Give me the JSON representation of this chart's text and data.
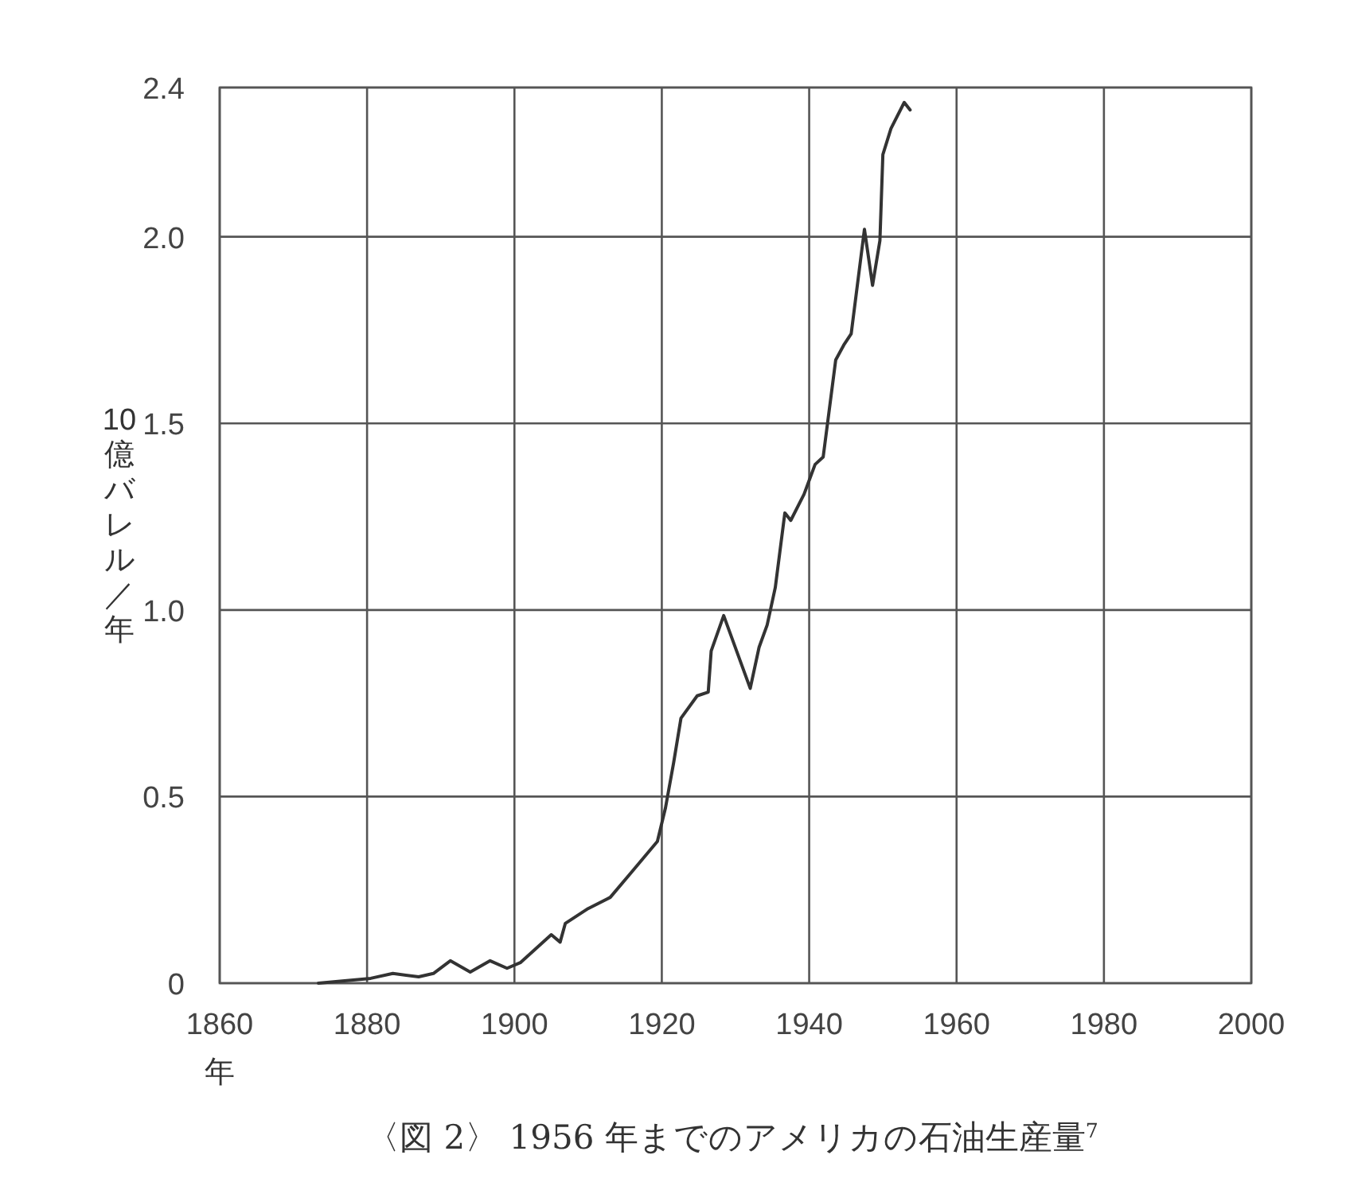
{
  "chart_data": {
    "type": "line",
    "title": "〈図 2〉 1956 年までのアメリカの石油生産量$^{7}$",
    "xlabel": "年",
    "ylabel": "10億バレル／年",
    "xlim": [
      1860,
      2000
    ],
    "ylim": [
      0,
      2.4
    ],
    "xticks": [
      1860,
      1880,
      1900,
      1920,
      1940,
      1960,
      1980,
      2000
    ],
    "yticks": [
      0,
      {
        "value": 0.5,
        "label": "0.5"
      },
      {
        "value": 1,
        "label": "1.0"
      },
      {
        "value": 1.5,
        "label": "1.5"
      },
      {
        "value": 2,
        "label": "2.0"
      },
      2.4
    ],
    "grid": true,
    "line_style": "solid",
    "series": [
      {
        "color": "#333333",
        "x": [
          1873.4,
          1880.5,
          1883.5,
          1887,
          1889,
          1891.3,
          1894,
          1896.7,
          1899,
          1900.8,
          1905,
          1906.2,
          1906.9,
          1910,
          1913,
          1916,
          1919.4,
          1920.5,
          1921.6,
          1922.6,
          1924.8,
          1926.3,
          1926.7,
          1928.4,
          1932,
          1933.2,
          1934.3,
          1935.4,
          1936.7,
          1937.5,
          1939.3,
          1940.8,
          1941.9,
          1943.6,
          1944.7,
          1945.7,
          1947.5,
          1948.6,
          1949.6,
          1950,
          1951.1,
          1952.9,
          1953.7
        ],
        "values": [
          0,
          0.013,
          0.026,
          0.017,
          0.026,
          0.06,
          0.03,
          0.06,
          0.04,
          0.055,
          0.13,
          0.11,
          0.16,
          0.2,
          0.23,
          0.3,
          0.38,
          0.47,
          0.59,
          0.71,
          0.77,
          0.78,
          0.89,
          0.985,
          0.79,
          0.9,
          0.96,
          1.06,
          1.26,
          1.24,
          1.31,
          1.39,
          1.41,
          1.67,
          1.71,
          1.74,
          2.02,
          1.87,
          1.99,
          2.22,
          2.29,
          2.36,
          2.34
        ]
      }
    ]
  }
}
